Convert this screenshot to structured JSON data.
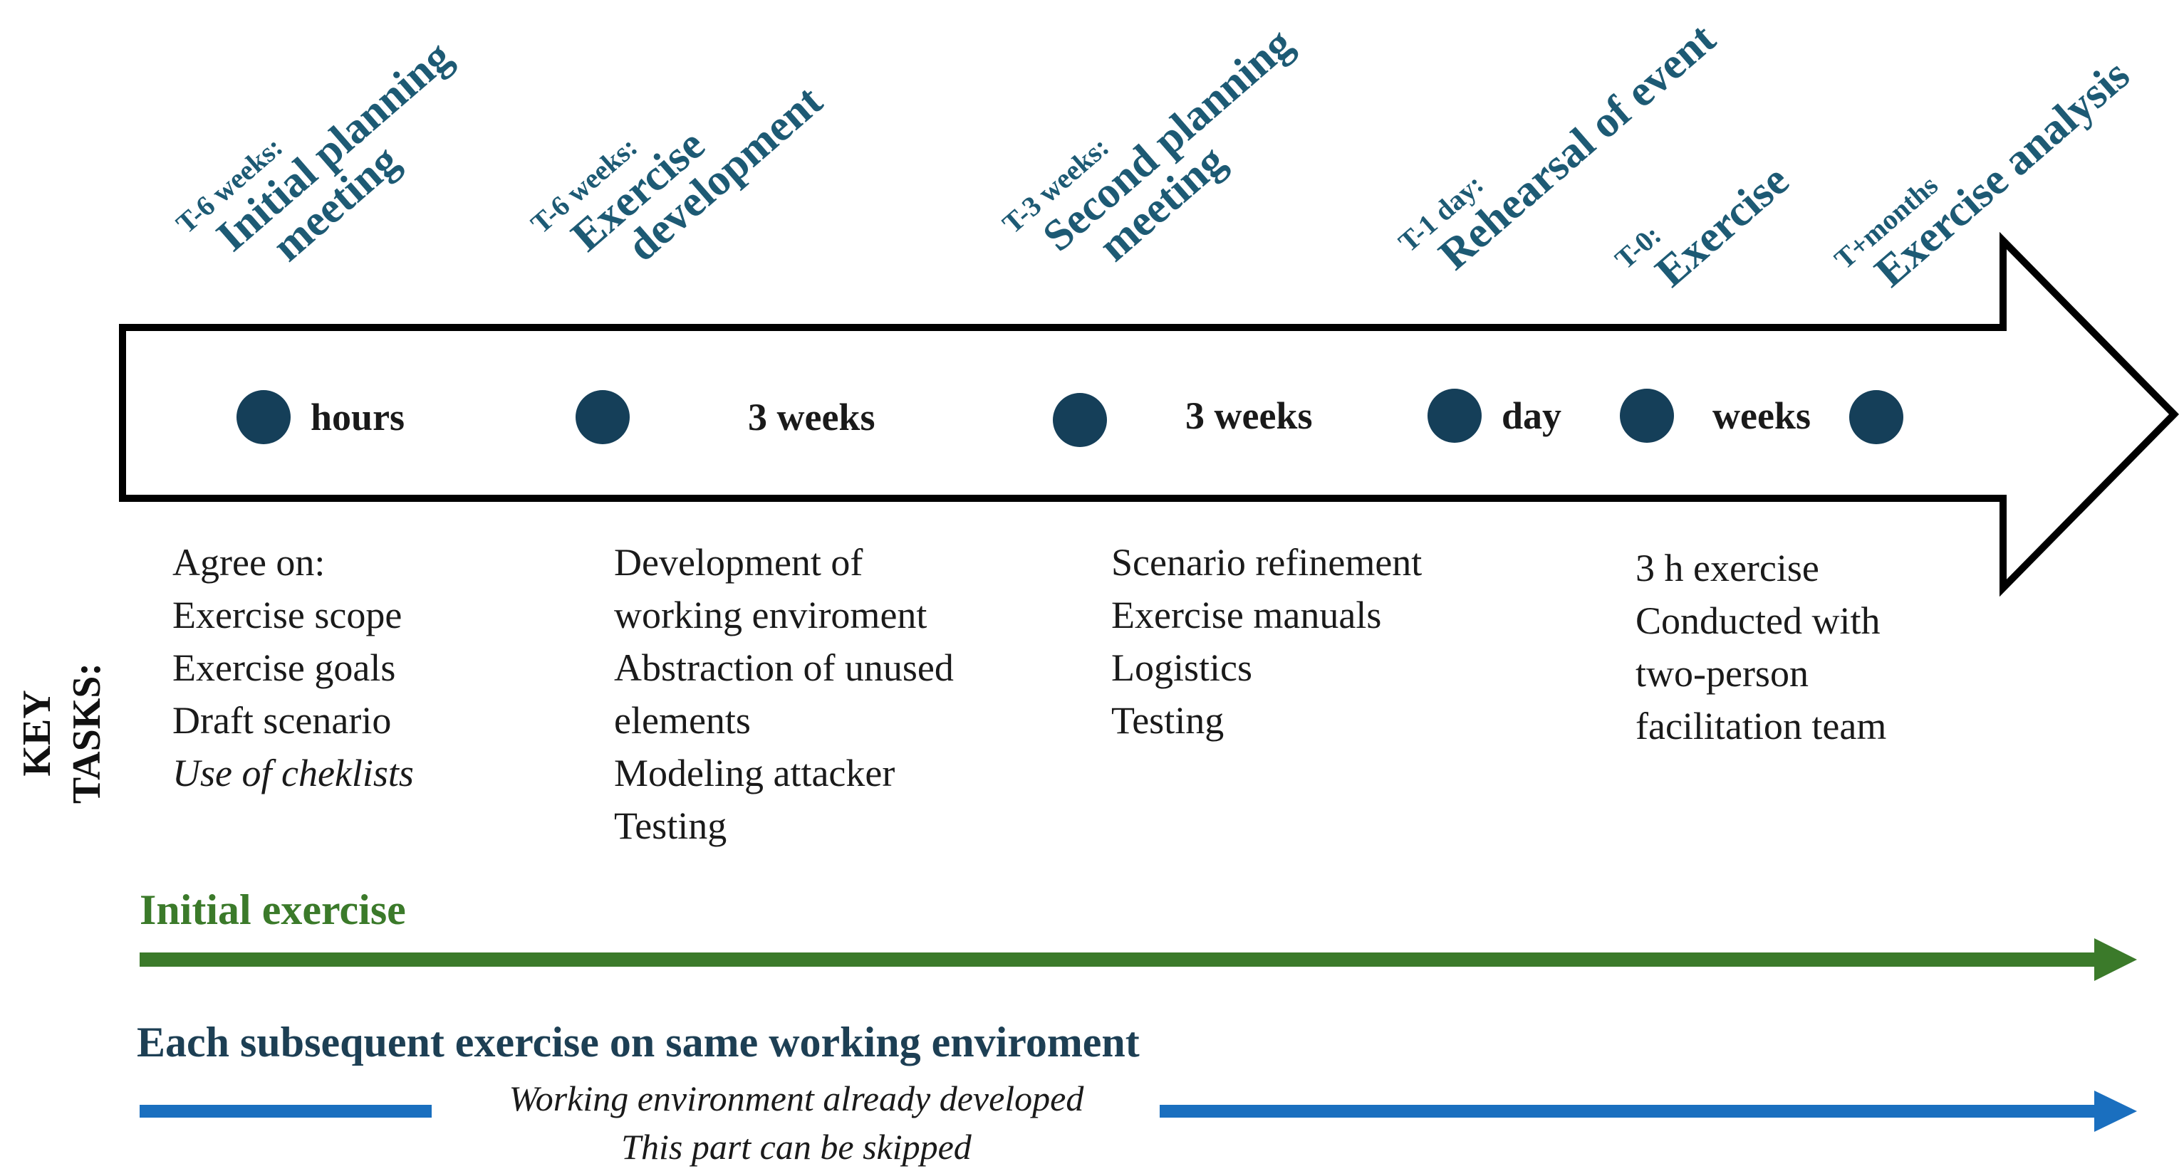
{
  "colors": {
    "milestone_dot": "#153f59",
    "milestone_text": "#1d5a74",
    "initial_track": "#3b7a2a",
    "subsequent_track": "#1a6fbf",
    "subsequent_title": "#1d3f54"
  },
  "milestones": [
    {
      "when": "T-6 weeks:",
      "lines": [
        "Initial planning",
        "meeting"
      ]
    },
    {
      "when": "T-6 weeks:",
      "lines": [
        "Exercise",
        "development"
      ]
    },
    {
      "when": "T-3 weeks:",
      "lines": [
        "Second planning",
        "meeting"
      ]
    },
    {
      "when": "T-1 day:",
      "lines": [
        "Rehearsal of event"
      ]
    },
    {
      "when": "T-0:",
      "lines": [
        "Exercise"
      ]
    },
    {
      "when": "T+months",
      "lines": [
        "Exercise analysis"
      ]
    }
  ],
  "durations": [
    "hours",
    "3 weeks",
    "3 weeks",
    "day",
    "weeks"
  ],
  "key_tasks_label": [
    "KEY",
    "TASKS:"
  ],
  "task_columns": [
    {
      "lines": [
        "Agree on:",
        "Exercise scope",
        "Exercise goals",
        "Draft scenario"
      ],
      "italic_lines": [
        "Use of cheklists"
      ]
    },
    {
      "lines": [
        "Development of",
        "working enviroment",
        "Abstraction of unused",
        "elements",
        "Modeling attacker",
        "Testing"
      ],
      "italic_lines": []
    },
    {
      "lines": [
        "Scenario refinement",
        "Exercise manuals",
        "Logistics",
        "Testing"
      ],
      "italic_lines": []
    },
    {
      "lines": [
        "3 h exercise",
        "Conducted with",
        "two-person",
        "facilitation team"
      ],
      "italic_lines": []
    }
  ],
  "tracks": {
    "initial": {
      "title": "Initial exercise"
    },
    "subsequent": {
      "title": "Each subsequent exercise on same working enviroment",
      "skip_note": [
        "Working environment already developed",
        "This part can be skipped"
      ]
    }
  }
}
